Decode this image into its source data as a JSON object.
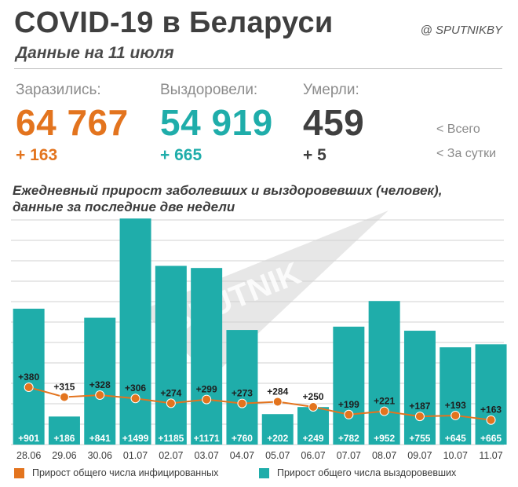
{
  "header": {
    "title": "COVID-19 в Беларуси",
    "subtitle": "Данные на 11 июля",
    "source": "@ SPUTNIKBY"
  },
  "stats": [
    {
      "label": "Заразились:",
      "value": "64 767",
      "delta": "+ 163"
    },
    {
      "label": "Выздоровели:",
      "value": "54 919",
      "delta": "+ 665"
    },
    {
      "label": "Умерли:",
      "value": "459",
      "delta": "+ 5"
    }
  ],
  "side_legend": {
    "total": "<  Всего",
    "daily": "<  За сутки"
  },
  "watermark": "SPUTNIK",
  "colors": {
    "infected": "#e3741e",
    "recovered": "#1fadaa",
    "dead": "#3f3f3f",
    "grid": "#d0d0d0"
  },
  "chart_data": {
    "type": "bar",
    "title": "Ежедневный прирост заболевших и выздоровевших (человек),\nданные за последние две недели",
    "categories": [
      "28.06",
      "29.06",
      "30.06",
      "01.07",
      "02.07",
      "03.07",
      "04.07",
      "05.07",
      "06.07",
      "07.07",
      "08.07",
      "09.07",
      "10.07",
      "11.07"
    ],
    "series": [
      {
        "name": "Прирост общего числа выздоровевших",
        "kind": "bar",
        "values": [
          901,
          186,
          841,
          1499,
          1185,
          1171,
          760,
          202,
          249,
          782,
          952,
          755,
          645,
          665
        ],
        "labels": [
          "+901",
          "+186",
          "+841",
          "+1499",
          "+1185",
          "+1171",
          "+760",
          "+202",
          "+249",
          "+782",
          "+952",
          "+755",
          "+645",
          "+665"
        ]
      },
      {
        "name": "Прирост общего числа инфицированных",
        "kind": "line",
        "values": [
          380,
          315,
          328,
          306,
          274,
          299,
          273,
          284,
          250,
          199,
          221,
          187,
          193,
          163
        ],
        "labels": [
          "+380",
          "+315",
          "+328",
          "+306",
          "+274",
          "+299",
          "+273",
          "+284",
          "+250",
          "+199",
          "+221",
          "+187",
          "+193",
          "+163"
        ]
      }
    ],
    "ylim": [
      0,
      1500
    ],
    "grid": true,
    "legend_position": "bottom"
  }
}
